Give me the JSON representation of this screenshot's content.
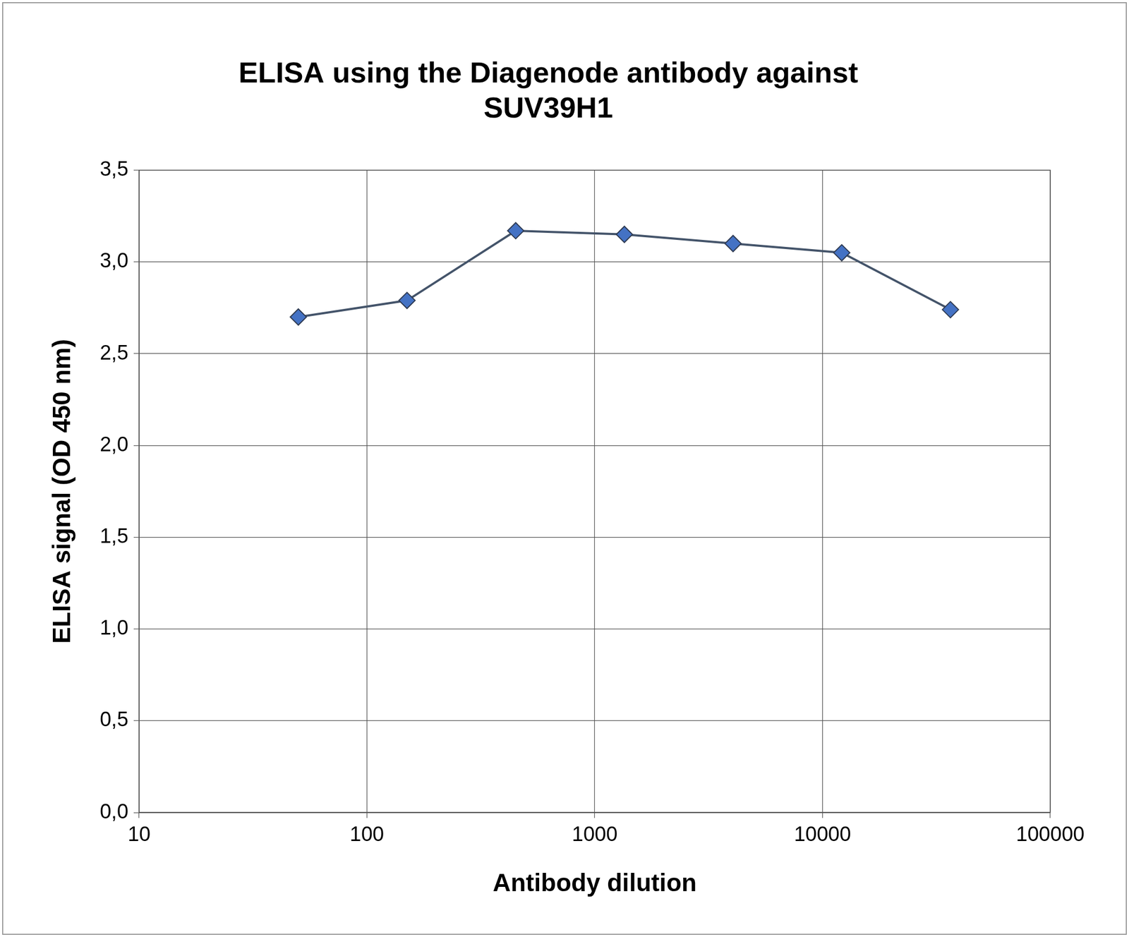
{
  "chart_data": {
    "type": "line",
    "title": [
      "ELISA using the Diagenode antibody against",
      "SUV39H1"
    ],
    "x_label": "Antibody dilution",
    "y_label": "ELISA signal (OD 450 nm)",
    "x": [
      50,
      150,
      450,
      1350,
      4050,
      12150,
      36450
    ],
    "series": [
      {
        "name": "SUV39H1",
        "color": "#4472c4",
        "values": [
          2.7,
          2.79,
          3.17,
          3.15,
          3.1,
          3.05,
          2.74
        ]
      }
    ],
    "xlim": [
      10,
      100000
    ],
    "xticks": [
      10,
      100,
      1000,
      10000,
      100000
    ],
    "ylim": [
      0,
      3.5
    ],
    "yticks": [
      {
        "value": 0,
        "label": "0,0"
      },
      {
        "value": 0.5,
        "label": "0,5"
      },
      {
        "value": 1,
        "label": "1,0"
      },
      {
        "value": 1.5,
        "label": "1,5"
      },
      {
        "value": 2,
        "label": "2,0"
      },
      {
        "value": 2.5,
        "label": "2,5"
      },
      {
        "value": 3,
        "label": "3,0"
      },
      {
        "value": 3.5,
        "label": "3,5"
      }
    ],
    "log": "x",
    "grid": true,
    "marker": "diamond",
    "line_style": "solid"
  }
}
